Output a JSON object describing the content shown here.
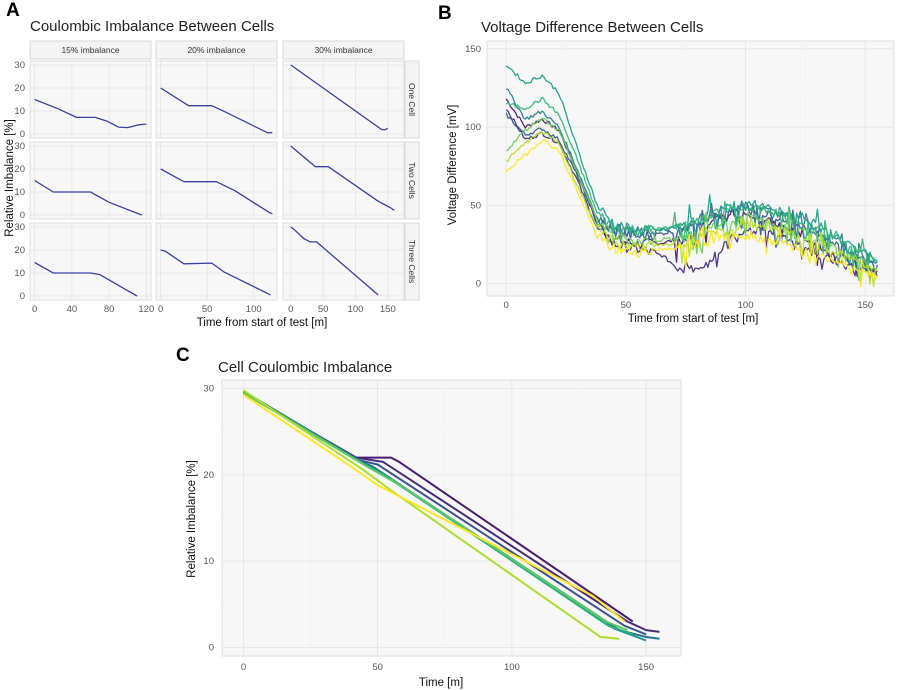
{
  "panel_letters": {
    "a": "A",
    "b": "B",
    "c": "C"
  },
  "chart_data": [
    {
      "id": "A",
      "type": "line",
      "title": "Coulombic Imbalance Between Cells",
      "xlabel": "Time from start of test [m]",
      "ylabel": "Relative Imbalance [%]",
      "col_labels": [
        "15% imbalance",
        "20% imbalance",
        "30% imbalance"
      ],
      "row_labels": [
        "One Cell",
        "Two Cells",
        "Three Cells"
      ],
      "ylim": [
        0,
        30
      ],
      "yticks": [
        0,
        10,
        20,
        30
      ],
      "col_xlim": [
        [
          -5,
          125
        ],
        [
          -5,
          125
        ],
        [
          -12,
          175
        ]
      ],
      "col_xticks": [
        [
          0,
          40,
          80,
          120
        ],
        [
          0,
          50,
          100
        ],
        [
          0,
          50,
          100,
          150
        ]
      ],
      "color": "#3b3f9e",
      "facets": [
        {
          "row": 0,
          "col": 0,
          "x": [
            0,
            25,
            45,
            65,
            78,
            90,
            100,
            112,
            120
          ],
          "y": [
            15,
            11,
            7.2,
            7.2,
            5.5,
            3,
            2.8,
            4,
            4.3
          ]
        },
        {
          "row": 0,
          "col": 1,
          "x": [
            0,
            30,
            55,
            70,
            115,
            120
          ],
          "y": [
            20,
            12.3,
            12.3,
            9.5,
            0.5,
            0.6
          ]
        },
        {
          "row": 0,
          "col": 2,
          "x": [
            0,
            140,
            145,
            150
          ],
          "y": [
            30,
            2,
            1.8,
            2.5
          ]
        },
        {
          "row": 1,
          "col": 0,
          "x": [
            0,
            20,
            60,
            80,
            115
          ],
          "y": [
            15,
            10,
            10,
            5.5,
            0
          ]
        },
        {
          "row": 1,
          "col": 1,
          "x": [
            0,
            25,
            60,
            80,
            117,
            120
          ],
          "y": [
            20,
            14.5,
            14.5,
            10.5,
            1,
            0.5
          ]
        },
        {
          "row": 1,
          "col": 2,
          "x": [
            0,
            38,
            58,
            135,
            155,
            160
          ],
          "y": [
            30,
            21,
            21,
            6,
            3,
            2
          ]
        },
        {
          "row": 2,
          "col": 0,
          "x": [
            0,
            20,
            60,
            70,
            110
          ],
          "y": [
            14.5,
            10,
            10,
            9.3,
            0
          ]
        },
        {
          "row": 2,
          "col": 1,
          "x": [
            0,
            5,
            25,
            55,
            68,
            118
          ],
          "y": [
            20,
            19.5,
            14,
            14.3,
            10.5,
            0.5
          ]
        },
        {
          "row": 2,
          "col": 2,
          "x": [
            0,
            5,
            20,
            30,
            40,
            135
          ],
          "y": [
            30,
            29,
            25,
            23.5,
            23.5,
            0.5
          ]
        }
      ]
    },
    {
      "id": "B",
      "type": "line",
      "title": "Voltage Difference Between Cells",
      "xlabel": "Time from start of test [m]",
      "ylabel": "Voltage Difference [mV]",
      "xlim": [
        -8,
        162
      ],
      "ylim": [
        -8,
        155
      ],
      "xticks": [
        0,
        50,
        100,
        150
      ],
      "yticks": [
        0,
        50,
        100,
        150
      ],
      "series": [
        {
          "name": "s1",
          "color": "#481d6f",
          "x": [
            0,
            8,
            15,
            22,
            30,
            38,
            45,
            55,
            65,
            75,
            85,
            100,
            115,
            130,
            145,
            155
          ],
          "y": [
            118,
            100,
            105,
            98,
            70,
            38,
            28,
            25,
            26,
            29,
            40,
            45,
            37,
            25,
            13,
            8
          ]
        },
        {
          "name": "s2",
          "color": "#46337e",
          "x": [
            0,
            8,
            15,
            22,
            30,
            38,
            45,
            55,
            65,
            70,
            75,
            82,
            88,
            95,
            105,
            115,
            125,
            135,
            145,
            155
          ],
          "y": [
            112,
            92,
            96,
            90,
            65,
            35,
            25,
            22,
            18,
            12,
            10,
            8,
            20,
            30,
            35,
            32,
            22,
            15,
            10,
            5
          ]
        },
        {
          "name": "s3",
          "color": "#365c8d",
          "x": [
            0,
            8,
            15,
            22,
            30,
            38,
            45,
            55,
            65,
            75,
            85,
            100,
            115,
            130,
            145,
            155
          ],
          "y": [
            108,
            95,
            99,
            92,
            68,
            40,
            33,
            30,
            32,
            35,
            42,
            48,
            42,
            32,
            20,
            12
          ]
        },
        {
          "name": "s4",
          "color": "#277f8e",
          "x": [
            0,
            8,
            15,
            22,
            30,
            38,
            45,
            55,
            65,
            75,
            85,
            100,
            115,
            130,
            145,
            155
          ],
          "y": [
            125,
            105,
            110,
            100,
            72,
            42,
            35,
            33,
            34,
            36,
            43,
            50,
            45,
            35,
            22,
            14
          ]
        },
        {
          "name": "s5",
          "color": "#1f9e89",
          "x": [
            0,
            8,
            15,
            22,
            30,
            38,
            45,
            55,
            65,
            75,
            85,
            100,
            115,
            130,
            145,
            155
          ],
          "y": [
            140,
            128,
            133,
            122,
            85,
            50,
            38,
            33,
            34,
            38,
            45,
            52,
            47,
            38,
            24,
            15
          ]
        },
        {
          "name": "s6",
          "color": "#35b779",
          "x": [
            0,
            8,
            15,
            22,
            30,
            38,
            45,
            55,
            65,
            75,
            85,
            100,
            115,
            130,
            145,
            155
          ],
          "y": [
            115,
            112,
            118,
            108,
            78,
            45,
            36,
            34,
            35,
            37,
            44,
            50,
            44,
            35,
            22,
            14
          ]
        },
        {
          "name": "s7",
          "color": "#6ece58",
          "x": [
            0,
            8,
            15,
            22,
            30,
            38,
            45,
            55,
            65,
            75,
            85,
            100,
            115,
            130,
            145,
            155
          ],
          "y": [
            85,
            98,
            106,
            98,
            70,
            40,
            30,
            27,
            28,
            30,
            36,
            42,
            38,
            30,
            18,
            10
          ]
        },
        {
          "name": "s8",
          "color": "#b5de2b",
          "x": [
            0,
            8,
            15,
            22,
            30,
            38,
            45,
            55,
            65,
            75,
            85,
            100,
            115,
            130,
            145,
            155
          ],
          "y": [
            78,
            90,
            97,
            90,
            62,
            35,
            26,
            24,
            24,
            26,
            32,
            38,
            34,
            26,
            15,
            8
          ]
        },
        {
          "name": "s9",
          "color": "#fde725",
          "x": [
            0,
            8,
            15,
            22,
            30,
            38,
            45,
            55,
            65,
            75,
            85,
            100,
            115,
            130,
            145,
            155
          ],
          "y": [
            72,
            82,
            92,
            85,
            58,
            30,
            22,
            20,
            22,
            24,
            28,
            30,
            26,
            18,
            10,
            5
          ]
        }
      ]
    },
    {
      "id": "C",
      "type": "line",
      "title": "Cell Coulombic Imbalance",
      "xlabel": "Time [m]",
      "ylabel": "Relative Imbalance [%]",
      "xlim": [
        -8,
        163
      ],
      "ylim": [
        -1,
        31
      ],
      "xticks": [
        0,
        50,
        100,
        150
      ],
      "yticks": [
        0,
        10,
        20,
        30
      ],
      "series": [
        {
          "name": "c1",
          "color": "#481d6f",
          "x": [
            0,
            42,
            55,
            58,
            145
          ],
          "y": [
            29.5,
            22,
            22,
            21.5,
            3
          ]
        },
        {
          "name": "c2",
          "color": "#472c7a",
          "x": [
            0,
            42,
            52,
            143,
            150,
            155
          ],
          "y": [
            29.5,
            22,
            21.5,
            3,
            2,
            1.8
          ]
        },
        {
          "name": "c3",
          "color": "#3b528b",
          "x": [
            0,
            43,
            50,
            142,
            150
          ],
          "y": [
            29.6,
            21.7,
            21.2,
            2.5,
            1.5
          ]
        },
        {
          "name": "c4",
          "color": "#2c728e",
          "x": [
            0,
            44,
            48,
            140,
            150,
            155
          ],
          "y": [
            29.7,
            21.5,
            21,
            2,
            1.2,
            1
          ]
        },
        {
          "name": "c5",
          "color": "#21918c",
          "x": [
            0,
            45,
            50,
            138,
            150
          ],
          "y": [
            29.5,
            21.3,
            20.5,
            2.2,
            0.8
          ]
        },
        {
          "name": "c6",
          "color": "#28ae80",
          "x": [
            0,
            46,
            55,
            136,
            145
          ],
          "y": [
            29.6,
            21,
            19.5,
            2.5,
            1.5
          ]
        },
        {
          "name": "c7",
          "color": "#5ec962",
          "x": [
            0,
            47,
            60,
            135,
            143
          ],
          "y": [
            29.5,
            20.8,
            18.5,
            3,
            2
          ]
        },
        {
          "name": "c8",
          "color": "#addc30",
          "x": [
            0,
            45,
            55,
            133,
            140
          ],
          "y": [
            29.8,
            20.5,
            18.2,
            1.2,
            1
          ]
        },
        {
          "name": "c9",
          "color": "#fde725",
          "x": [
            0,
            40,
            50,
            130,
            142
          ],
          "y": [
            29.3,
            21,
            18.8,
            6,
            3
          ]
        }
      ]
    }
  ]
}
